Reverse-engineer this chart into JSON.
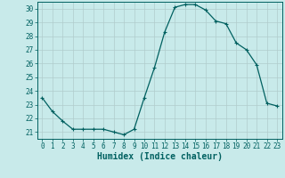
{
  "x": [
    0,
    1,
    2,
    3,
    4,
    5,
    6,
    7,
    8,
    9,
    10,
    11,
    12,
    13,
    14,
    15,
    16,
    17,
    18,
    19,
    20,
    21,
    22,
    23
  ],
  "y": [
    23.5,
    22.5,
    21.8,
    21.2,
    21.2,
    21.2,
    21.2,
    21.0,
    20.8,
    21.2,
    23.5,
    25.7,
    28.3,
    30.1,
    30.3,
    30.3,
    29.9,
    29.1,
    28.9,
    27.5,
    27.0,
    25.9,
    23.1,
    22.9
  ],
  "line_color": "#006060",
  "marker": "+",
  "markersize": 3,
  "markeredgewidth": 0.8,
  "linewidth": 0.9,
  "background_color": "#c8eaea",
  "grid_color": "#b0cccc",
  "xlabel": "Humidex (Indice chaleur)",
  "xlim": [
    -0.5,
    23.5
  ],
  "ylim": [
    20.5,
    30.5
  ],
  "yticks": [
    21,
    22,
    23,
    24,
    25,
    26,
    27,
    28,
    29,
    30
  ],
  "xticks": [
    0,
    1,
    2,
    3,
    4,
    5,
    6,
    7,
    8,
    9,
    10,
    11,
    12,
    13,
    14,
    15,
    16,
    17,
    18,
    19,
    20,
    21,
    22,
    23
  ],
  "tick_fontsize": 5.5,
  "xlabel_fontsize": 7
}
